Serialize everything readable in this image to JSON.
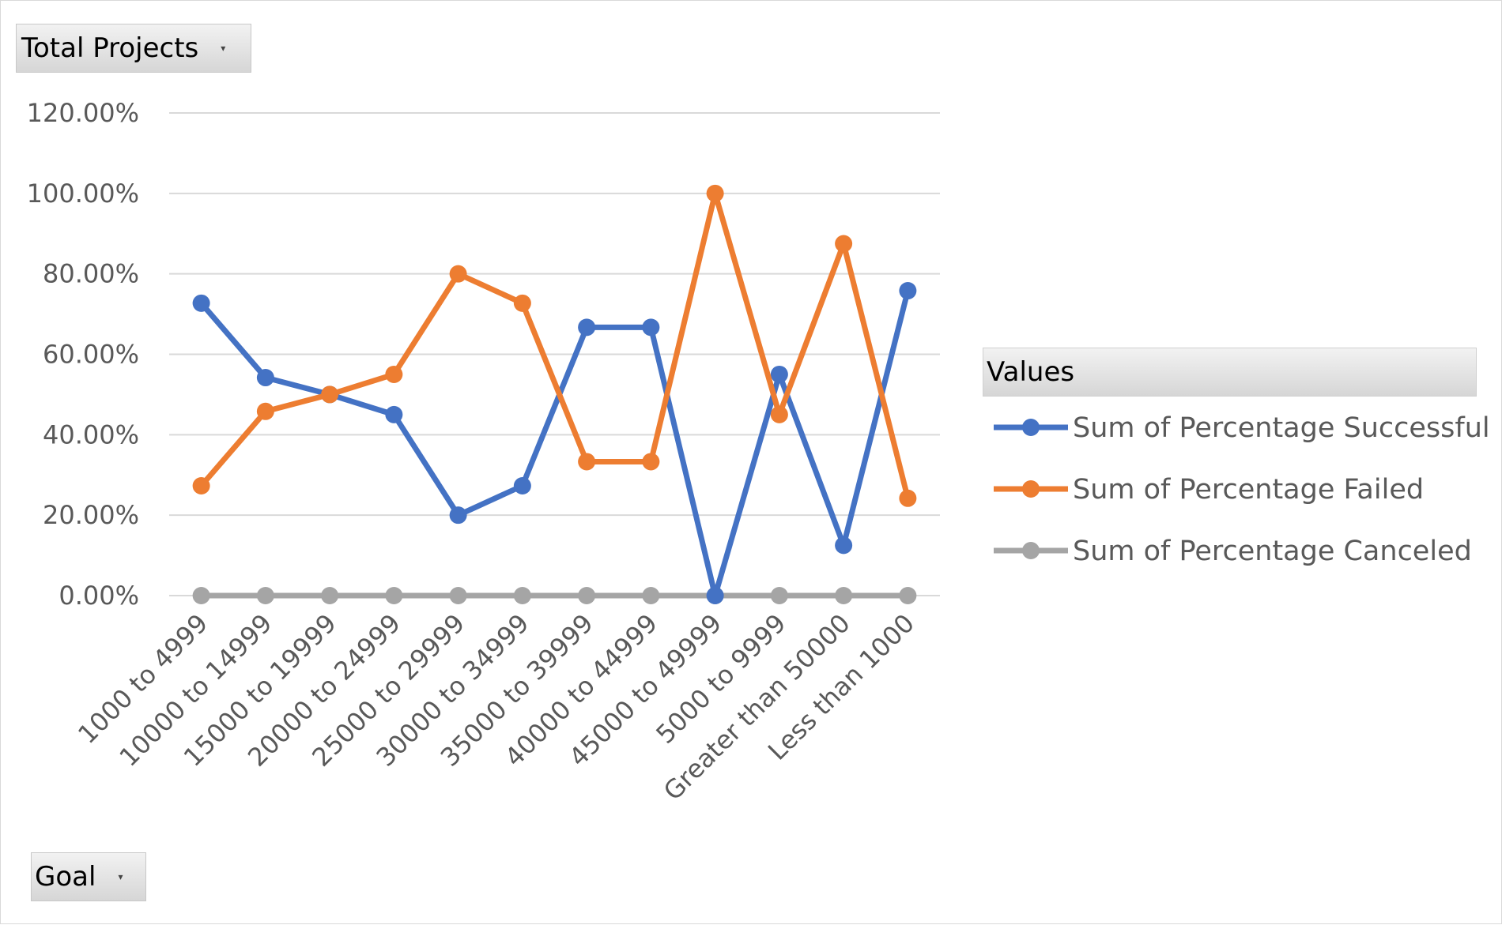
{
  "pivot": {
    "top_field": "Total Projects",
    "bottom_field": "Goal",
    "legend_header": "Values"
  },
  "chart_data": {
    "type": "line",
    "title": "",
    "xlabel": "",
    "ylabel": "",
    "ylim": [
      0,
      1.2
    ],
    "yticks": [
      0,
      0.2,
      0.4,
      0.6,
      0.8,
      1.0,
      1.2
    ],
    "ytick_labels": [
      "0.00%",
      "20.00%",
      "40.00%",
      "60.00%",
      "80.00%",
      "100.00%",
      "120.00%"
    ],
    "grid": true,
    "legend_position": "right",
    "categories": [
      "1000 to 4999",
      "10000 to 14999",
      "15000 to 19999",
      "20000 to 24999",
      "25000 to 29999",
      "30000 to  34999",
      "35000 to 39999",
      "40000 to 44999",
      "45000 to 49999",
      "5000 to 9999",
      "Greater than 50000",
      "Less than 1000"
    ],
    "series": [
      {
        "name": "Sum of Percentage Successful",
        "color": "#4472c4",
        "values": [
          0.727,
          0.542,
          0.5,
          0.45,
          0.2,
          0.273,
          0.667,
          0.667,
          0.0,
          0.55,
          0.125,
          0.758
        ]
      },
      {
        "name": "Sum of Percentage Failed",
        "color": "#ed7d31",
        "values": [
          0.273,
          0.458,
          0.5,
          0.55,
          0.8,
          0.727,
          0.333,
          0.333,
          1.0,
          0.45,
          0.875,
          0.242
        ]
      },
      {
        "name": "Sum of Percentage Canceled",
        "color": "#a5a5a5",
        "values": [
          0,
          0,
          0,
          0,
          0,
          0,
          0,
          0,
          0,
          0,
          0,
          0
        ]
      }
    ]
  }
}
